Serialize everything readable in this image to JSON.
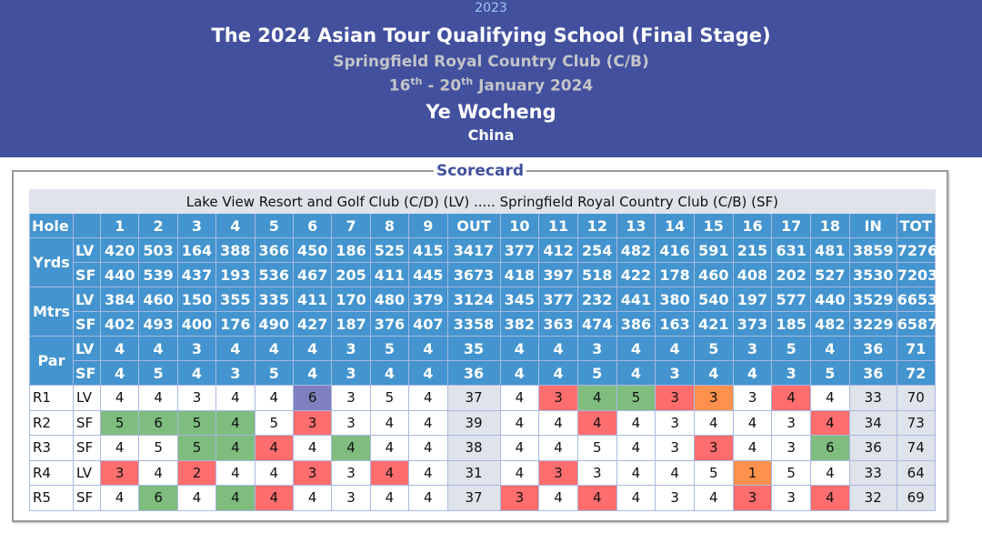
{
  "header": {
    "year": "2023",
    "title": "The 2024 Asian Tour Qualifying School (Final Stage)",
    "venue": "Springfield Royal Country Club (C/B)",
    "date_start": "16",
    "date_start_sup": "th",
    "date_sep": " - ",
    "date_end": "20",
    "date_end_sup": "th",
    "date_rest": " January 2024",
    "player": "Ye Wocheng",
    "country": "China"
  },
  "scorecard": {
    "legend": "Scorecard",
    "courses_label": "Lake View Resort and Golf Club (C/D) (LV) ..... Springfield Royal Country Club (C/B) (SF)",
    "header_row": [
      "Hole",
      "",
      "1",
      "2",
      "3",
      "4",
      "5",
      "6",
      "7",
      "8",
      "9",
      "OUT",
      "10",
      "11",
      "12",
      "13",
      "14",
      "15",
      "16",
      "17",
      "18",
      "IN",
      "TOT"
    ],
    "info_rows": [
      {
        "label": "Yrds",
        "rows": [
          {
            "course": "LV",
            "values": [
              "420",
              "503",
              "164",
              "388",
              "366",
              "450",
              "186",
              "525",
              "415",
              "3417",
              "377",
              "412",
              "254",
              "482",
              "416",
              "591",
              "215",
              "631",
              "481",
              "3859",
              "7276"
            ]
          },
          {
            "course": "SF",
            "values": [
              "440",
              "539",
              "437",
              "193",
              "536",
              "467",
              "205",
              "411",
              "445",
              "3673",
              "418",
              "397",
              "518",
              "422",
              "178",
              "460",
              "408",
              "202",
              "527",
              "3530",
              "7203"
            ]
          }
        ]
      },
      {
        "label": "Mtrs",
        "rows": [
          {
            "course": "LV",
            "values": [
              "384",
              "460",
              "150",
              "355",
              "335",
              "411",
              "170",
              "480",
              "379",
              "3124",
              "345",
              "377",
              "232",
              "441",
              "380",
              "540",
              "197",
              "577",
              "440",
              "3529",
              "6653"
            ]
          },
          {
            "course": "SF",
            "values": [
              "402",
              "493",
              "400",
              "176",
              "490",
              "427",
              "187",
              "376",
              "407",
              "3358",
              "382",
              "363",
              "474",
              "386",
              "163",
              "421",
              "373",
              "185",
              "482",
              "3229",
              "6587"
            ]
          }
        ]
      },
      {
        "label": "Par",
        "rows": [
          {
            "course": "LV",
            "values": [
              "4",
              "4",
              "3",
              "4",
              "4",
              "4",
              "3",
              "5",
              "4",
              "35",
              "4",
              "4",
              "3",
              "4",
              "4",
              "5",
              "3",
              "5",
              "4",
              "36",
              "71"
            ]
          },
          {
            "course": "SF",
            "values": [
              "4",
              "5",
              "4",
              "3",
              "5",
              "4",
              "3",
              "4",
              "4",
              "36",
              "4",
              "4",
              "5",
              "4",
              "3",
              "4",
              "4",
              "3",
              "5",
              "36",
              "72"
            ]
          }
        ]
      }
    ],
    "rounds": [
      {
        "round": "R1",
        "course": "LV",
        "values": [
          "4",
          "4",
          "3",
          "4",
          "4",
          "6",
          "3",
          "5",
          "4",
          "37",
          "4",
          "3",
          "4",
          "5",
          "3",
          "3",
          "3",
          "4",
          "4",
          "33",
          "70"
        ]
      },
      {
        "round": "R2",
        "course": "SF",
        "values": [
          "5",
          "6",
          "5",
          "4",
          "5",
          "3",
          "3",
          "4",
          "4",
          "39",
          "4",
          "4",
          "4",
          "4",
          "3",
          "4",
          "4",
          "3",
          "4",
          "34",
          "73"
        ]
      },
      {
        "round": "R3",
        "course": "SF",
        "values": [
          "4",
          "5",
          "5",
          "4",
          "4",
          "4",
          "4",
          "4",
          "4",
          "38",
          "4",
          "4",
          "5",
          "4",
          "3",
          "3",
          "4",
          "3",
          "6",
          "36",
          "74"
        ]
      },
      {
        "round": "R4",
        "course": "LV",
        "values": [
          "3",
          "4",
          "2",
          "4",
          "4",
          "3",
          "3",
          "4",
          "4",
          "31",
          "4",
          "3",
          "3",
          "4",
          "4",
          "5",
          "1",
          "5",
          "4",
          "33",
          "64"
        ]
      },
      {
        "round": "R5",
        "course": "SF",
        "values": [
          "4",
          "6",
          "4",
          "4",
          "4",
          "4",
          "3",
          "4",
          "4",
          "37",
          "3",
          "4",
          "4",
          "4",
          "3",
          "4",
          "3",
          "3",
          "4",
          "32",
          "69"
        ]
      }
    ],
    "score_colors": {
      "birdie": "#ff6e6e",
      "eagle": "#ff914d",
      "bogey": "#7fbd7f",
      "double_bogey": "#8080c0",
      "par": "#ffffff"
    }
  }
}
